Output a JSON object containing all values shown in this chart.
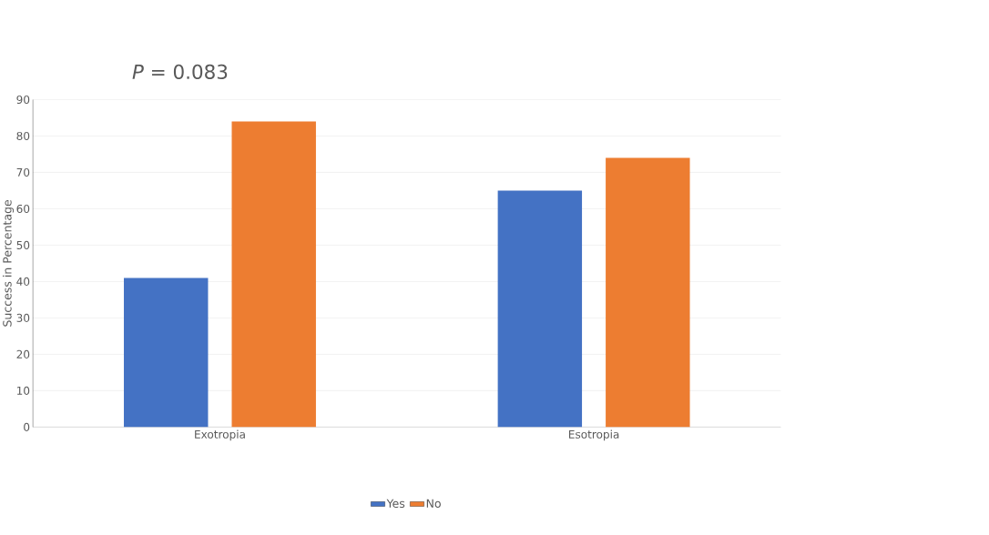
{
  "chart_data": {
    "type": "bar",
    "ylabel": "Success in Percentage",
    "annotations": [
      "*P* = 0.083"
    ],
    "categories": [
      "Exotropia",
      "Esotropia"
    ],
    "series": [
      {
        "name": "Yes",
        "color": "#4472c4",
        "values": [
          41,
          65
        ]
      },
      {
        "name": "No",
        "color": "#ed7d31",
        "values": [
          84,
          74
        ]
      }
    ],
    "ylim": [
      0,
      90
    ],
    "yticks": [
      0,
      10,
      20,
      30,
      40,
      50,
      60,
      70,
      80,
      90
    ],
    "grid": "y",
    "legend": "bottom"
  }
}
